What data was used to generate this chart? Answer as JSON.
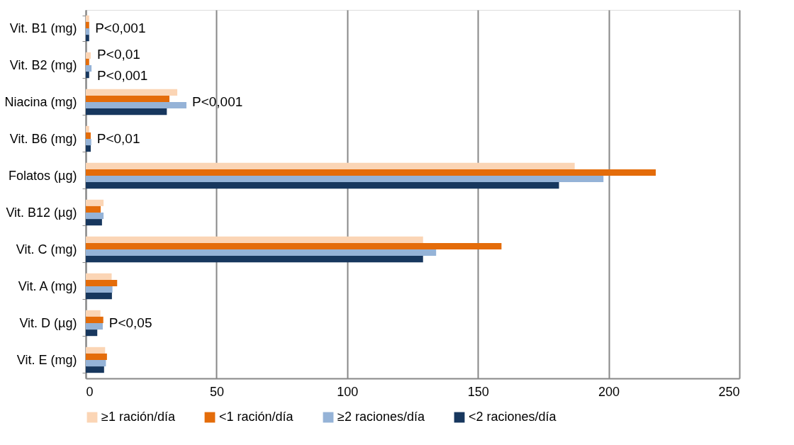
{
  "chart_data": {
    "type": "bar",
    "orientation": "horizontal",
    "categories": [
      "Vit. B1 (mg)",
      "Vit. B2 (mg)",
      "Niacina (mg)",
      "Vit. B6 (mg)",
      "Folatos (µg)",
      "Vit. B12 (µg)",
      "Vit. C (mg)",
      "Vit. A (mg)",
      "Vit. D (µg)",
      "Vit. E (mg)"
    ],
    "series": [
      {
        "name": "≥1 ración/día",
        "color": "#fbd5b5",
        "values": [
          1.3,
          1.9,
          35,
          1.3,
          187,
          6.8,
          129,
          9.9,
          5.6,
          7.4
        ]
      },
      {
        "name": "<1 ración/día",
        "color": "#e46c0a",
        "values": [
          1.3,
          1.3,
          32,
          1.9,
          218,
          5.7,
          159,
          12,
          6.7,
          8.1
        ]
      },
      {
        "name": "≥2 raciones/día",
        "color": "#95b3d7",
        "values": [
          1.4,
          2.2,
          38.5,
          2.1,
          198,
          6.8,
          134,
          10.2,
          6.5,
          7.7
        ]
      },
      {
        "name": "<2 raciones/día",
        "color": "#17375e",
        "values": [
          1.3,
          1.3,
          31,
          1.9,
          181,
          6.2,
          129,
          10,
          4.4,
          7
        ]
      }
    ],
    "xlim": [
      0,
      250
    ],
    "xticks": [
      0,
      50,
      100,
      150,
      200,
      250
    ],
    "grid": "x",
    "legend": "bottom",
    "annotations": [
      {
        "text": "P<0,001",
        "x": 1.4,
        "y": "Vit. B1 (mg)"
      },
      {
        "text": "P<0,01",
        "x": 2.2,
        "y": "Vit. B2 (mg)"
      },
      {
        "text": "P<0,001",
        "x": 2.2,
        "y": "Vit. B2 (mg)"
      },
      {
        "text": "P<0,001",
        "x": 38.5,
        "y": "Niacina (mg)"
      },
      {
        "text": "P<0,01",
        "x": 2.1,
        "y": "Vit. B6 (mg)"
      },
      {
        "text": "P<0,05",
        "x": 6.7,
        "y": "Vit. D (µg)"
      }
    ]
  }
}
